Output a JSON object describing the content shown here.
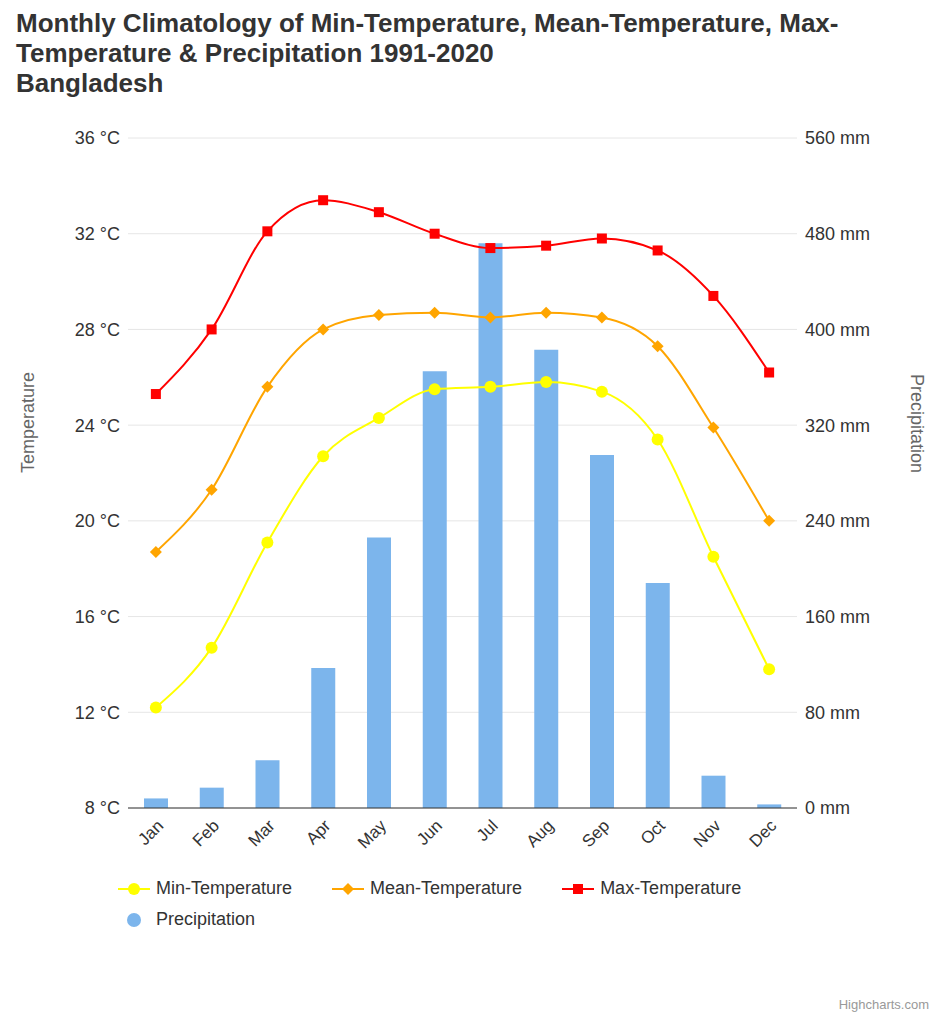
{
  "chart_data": {
    "type": "combo",
    "title": "Monthly Climatology of Min-Temperature, Mean-Temperature, Max-Temperature & Precipitation 1991-2020",
    "subtitle": "Bangladesh",
    "credit": "Highcharts.com",
    "y_label": "Temperature",
    "y2_label": "Precipitation",
    "categories": [
      "Jan",
      "Feb",
      "Mar",
      "Apr",
      "May",
      "Jun",
      "Jul",
      "Aug",
      "Sep",
      "Oct",
      "Nov",
      "Dec"
    ],
    "ylim": [
      8,
      36
    ],
    "yticks": [
      {
        "value": 8,
        "label": "8 °C"
      },
      {
        "value": 12,
        "label": "12 °C"
      },
      {
        "value": 16,
        "label": "16 °C"
      },
      {
        "value": 20,
        "label": "20 °C"
      },
      {
        "value": 24,
        "label": "24 °C"
      },
      {
        "value": 28,
        "label": "28 °C"
      },
      {
        "value": 32,
        "label": "32 °C"
      },
      {
        "value": 36,
        "label": "36 °C"
      }
    ],
    "y2lim": [
      0,
      560
    ],
    "y2ticks": [
      {
        "value": 0,
        "label": "0 mm"
      },
      {
        "value": 80,
        "label": "80 mm"
      },
      {
        "value": 160,
        "label": "160 mm"
      },
      {
        "value": 240,
        "label": "240 mm"
      },
      {
        "value": 320,
        "label": "320 mm"
      },
      {
        "value": 400,
        "label": "400 mm"
      },
      {
        "value": 480,
        "label": "480 mm"
      },
      {
        "value": 560,
        "label": "560 mm"
      }
    ],
    "grid": true,
    "legend": "bottom",
    "series": [
      {
        "name": "Min-Temperature",
        "type": "line",
        "color": "#ffff00",
        "marker": "circle",
        "values": [
          12.2,
          14.7,
          19.1,
          22.7,
          24.3,
          25.5,
          25.6,
          25.8,
          25.4,
          23.4,
          18.5,
          13.8
        ]
      },
      {
        "name": "Mean-Temperature",
        "type": "line",
        "color": "#ffa500",
        "marker": "diamond",
        "values": [
          18.7,
          21.3,
          25.6,
          28.0,
          28.6,
          28.7,
          28.5,
          28.7,
          28.5,
          27.3,
          23.9,
          20.0
        ]
      },
      {
        "name": "Max-Temperature",
        "type": "line",
        "color": "#ff0000",
        "marker": "square",
        "values": [
          25.3,
          28.0,
          32.1,
          33.4,
          32.9,
          32.0,
          31.4,
          31.5,
          31.8,
          31.3,
          29.4,
          26.2
        ]
      },
      {
        "name": "Precipitation",
        "type": "bar",
        "color": "#7cb5ec",
        "axis": "y2",
        "values": [
          8,
          17,
          40,
          117,
          226,
          365,
          472,
          383,
          295,
          188,
          27,
          3
        ]
      }
    ]
  }
}
